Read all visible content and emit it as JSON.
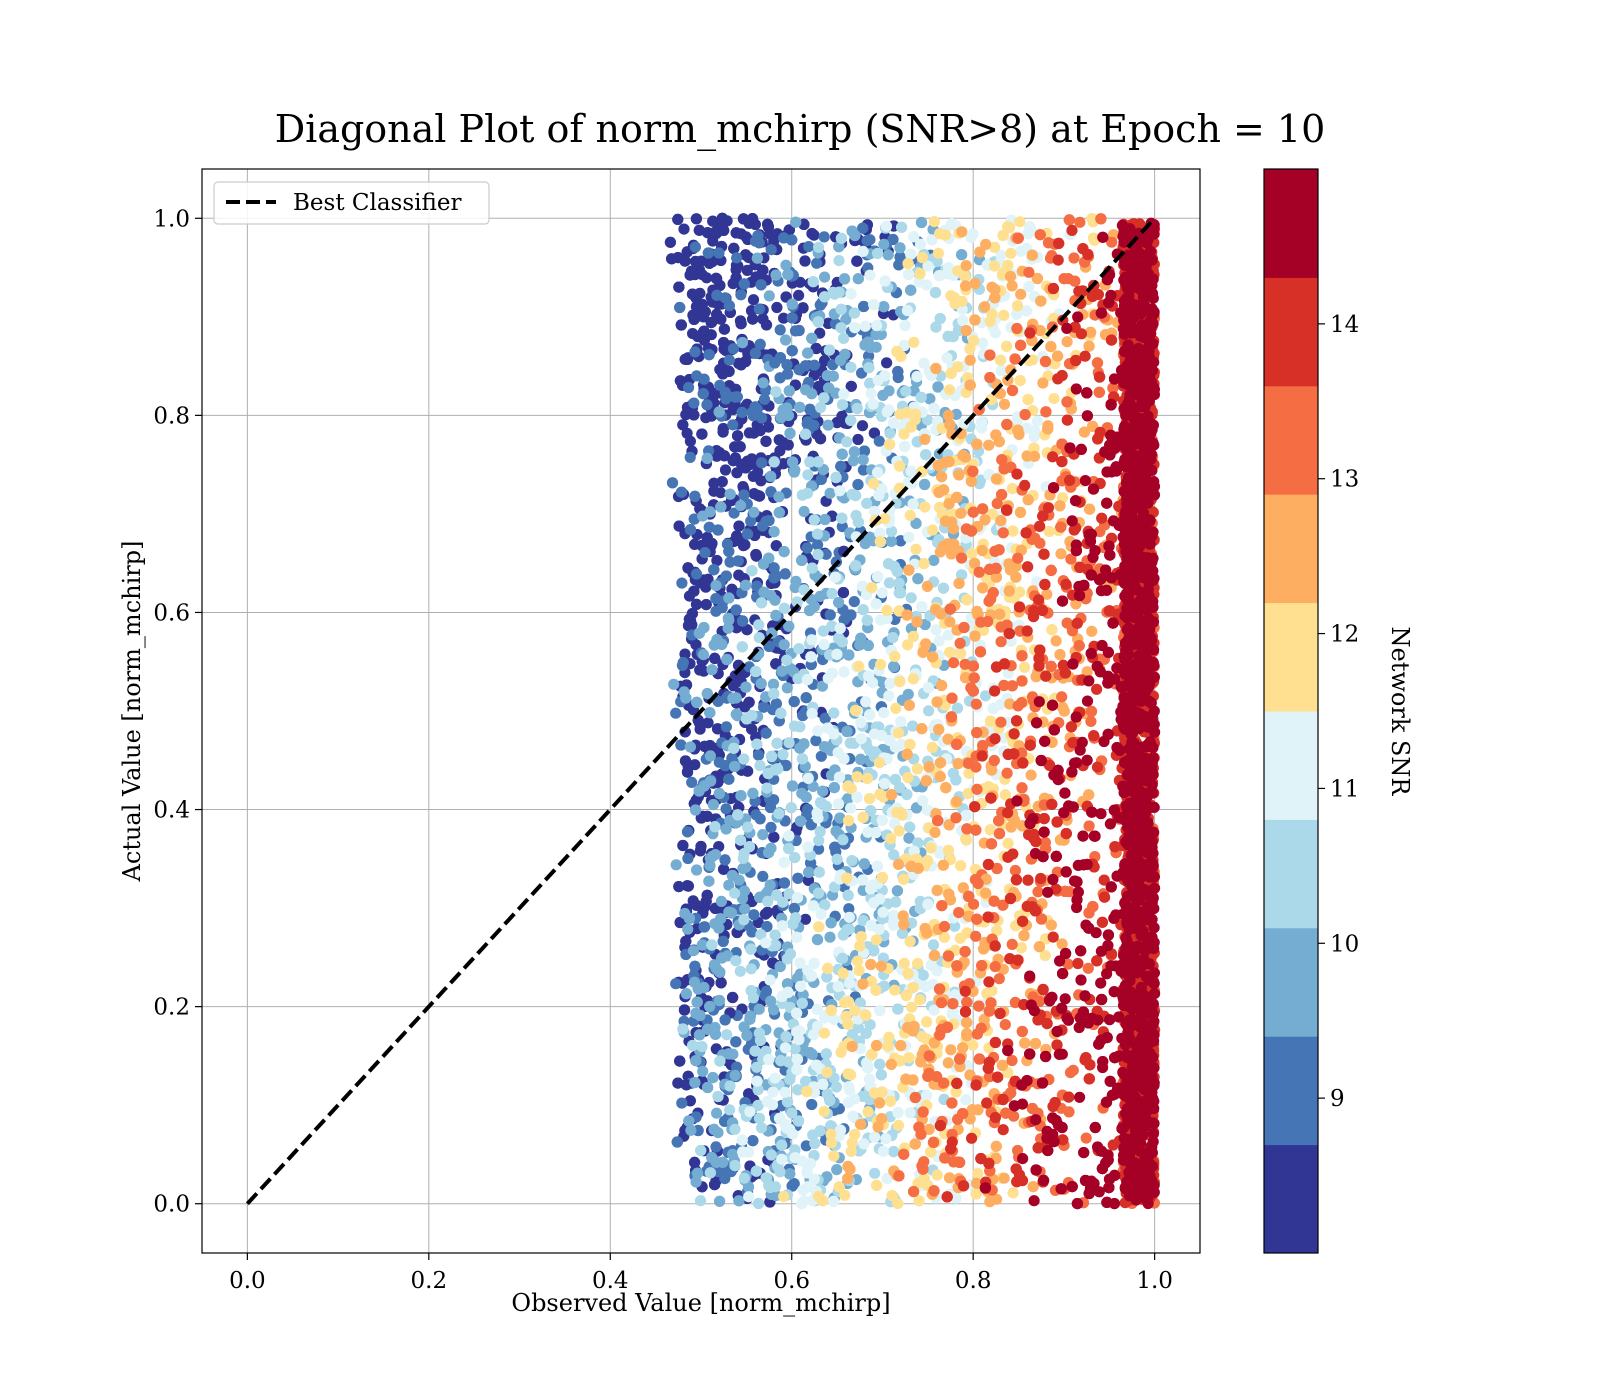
{
  "chart_data": {
    "type": "scatter",
    "title": "Diagonal Plot of norm_mchirp (SNR>8) at Epoch = 10",
    "xlabel": "Observed Value [norm_mchirp]",
    "ylabel": "Actual Value [norm_mchirp]",
    "xlim": [
      -0.05,
      1.05
    ],
    "ylim": [
      -0.05,
      1.05
    ],
    "xticks": [
      "0.0",
      "0.2",
      "0.4",
      "0.6",
      "0.8",
      "1.0"
    ],
    "yticks": [
      "0.0",
      "0.2",
      "0.4",
      "0.6",
      "0.8",
      "1.0"
    ],
    "grid": true,
    "legend": {
      "placement": "upper-left",
      "entries": [
        "Best Classifier"
      ]
    },
    "reference_line": {
      "name": "Best Classifier",
      "style": "dashed",
      "color": "#000000",
      "x": [
        0.0,
        1.0
      ],
      "y": [
        0.0,
        1.0
      ]
    },
    "colorbar": {
      "label": "Network SNR",
      "ticks": [
        "9",
        "10",
        "11",
        "12",
        "13",
        "14"
      ],
      "range": [
        8.0,
        15.0
      ],
      "colors": [
        "#313695",
        "#4575b4",
        "#74add1",
        "#abd9e9",
        "#e0f3f8",
        "#fee090",
        "#fdae61",
        "#f46d43",
        "#d73027",
        "#a50026"
      ]
    },
    "series": [
      {
        "marker_color_by": "Network SNR",
        "point_clusters": [
          {
            "snr": "8-9",
            "x_range": [
              0.44,
              0.62
            ],
            "y_range": [
              0.02,
              1.0
            ]
          },
          {
            "snr": "9-11",
            "x_range": [
              0.47,
              0.8
            ],
            "y_range": [
              0.02,
              1.0
            ]
          },
          {
            "snr": "11-13",
            "x_range": [
              0.5,
              0.97
            ],
            "y_range": [
              0.0,
              1.0
            ]
          },
          {
            "snr": "13-15",
            "x_range": [
              0.55,
              1.0
            ],
            "y_range": [
              0.0,
              1.0
            ]
          }
        ]
      }
    ]
  }
}
